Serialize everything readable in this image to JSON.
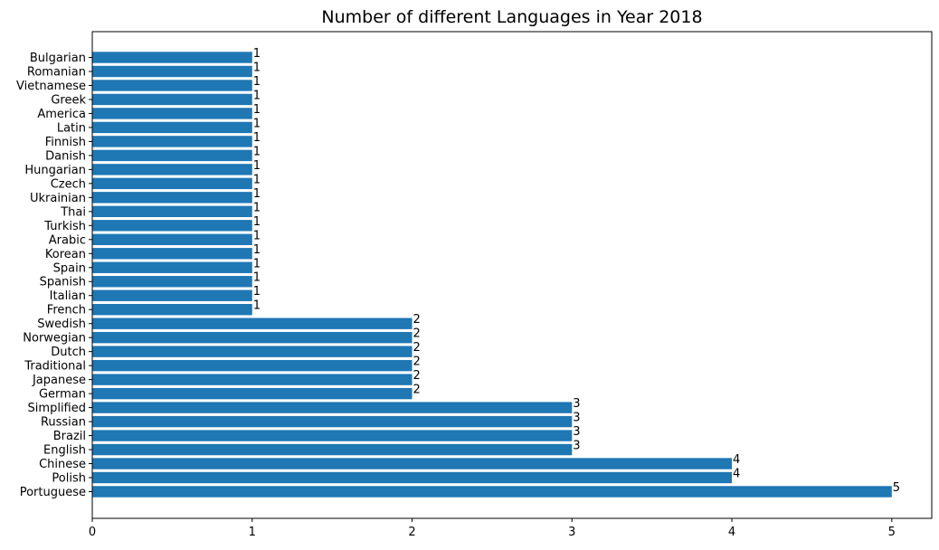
{
  "chart_data": {
    "type": "bar",
    "orientation": "horizontal",
    "title": "Number of different Languages in Year 2018",
    "xlabel": "",
    "ylabel": "",
    "categories": [
      "Portuguese",
      "Polish",
      "Chinese",
      "English",
      "Brazil",
      "Russian",
      "Simplified",
      "German",
      "Japanese",
      "Traditional",
      "Dutch",
      "Norwegian",
      "Swedish",
      "French",
      "Italian",
      "Spanish",
      "Spain",
      "Korean",
      "Arabic",
      "Turkish",
      "Thai",
      "Ukrainian",
      "Czech",
      "Hungarian",
      "Danish",
      "Finnish",
      "Latin",
      "America",
      "Greek",
      "Vietnamese",
      "Romanian",
      "Bulgarian"
    ],
    "values": [
      5,
      4,
      4,
      3,
      3,
      3,
      3,
      2,
      2,
      2,
      2,
      2,
      2,
      1,
      1,
      1,
      1,
      1,
      1,
      1,
      1,
      1,
      1,
      1,
      1,
      1,
      1,
      1,
      1,
      1,
      1,
      1
    ],
    "xlim": [
      0,
      5.25
    ],
    "xticks": [
      "0",
      "1",
      "2",
      "3",
      "4",
      "5"
    ],
    "bar_color": "#1f77b4",
    "grid": false,
    "data_labels": true
  }
}
